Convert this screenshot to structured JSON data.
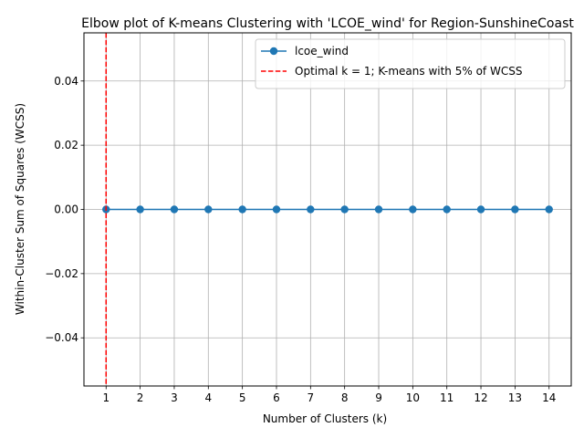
{
  "chart_data": {
    "type": "line",
    "title": "Elbow plot of K-means Clustering with 'LCOE_wind' for Region-SunshineCoast",
    "xlabel": "Number of Clusters (k)",
    "ylabel": "Within-Cluster Sum of Squares (WCSS)",
    "x": [
      1,
      2,
      3,
      4,
      5,
      6,
      7,
      8,
      9,
      10,
      11,
      12,
      13,
      14
    ],
    "xticks": [
      "1",
      "2",
      "3",
      "4",
      "5",
      "6",
      "7",
      "8",
      "9",
      "10",
      "11",
      "12",
      "13",
      "14"
    ],
    "yticks": [
      "−0.04",
      "−0.02",
      "0.00",
      "0.02",
      "0.04"
    ],
    "ytick_values": [
      -0.04,
      -0.02,
      0.0,
      0.02,
      0.04
    ],
    "xlim": [
      0.35,
      14.65
    ],
    "ylim": [
      -0.055,
      0.055
    ],
    "series": [
      {
        "name": "lcoe_wind",
        "values": [
          0,
          0,
          0,
          0,
          0,
          0,
          0,
          0,
          0,
          0,
          0,
          0,
          0,
          0
        ],
        "color": "#1f77b4",
        "marker": "circle"
      }
    ],
    "vline": {
      "x": 1,
      "label": "Optimal k = 1; K-means with 5% of WCSS",
      "color": "#ff0000",
      "style": "dashed"
    },
    "grid": true,
    "legend": "top-right"
  }
}
